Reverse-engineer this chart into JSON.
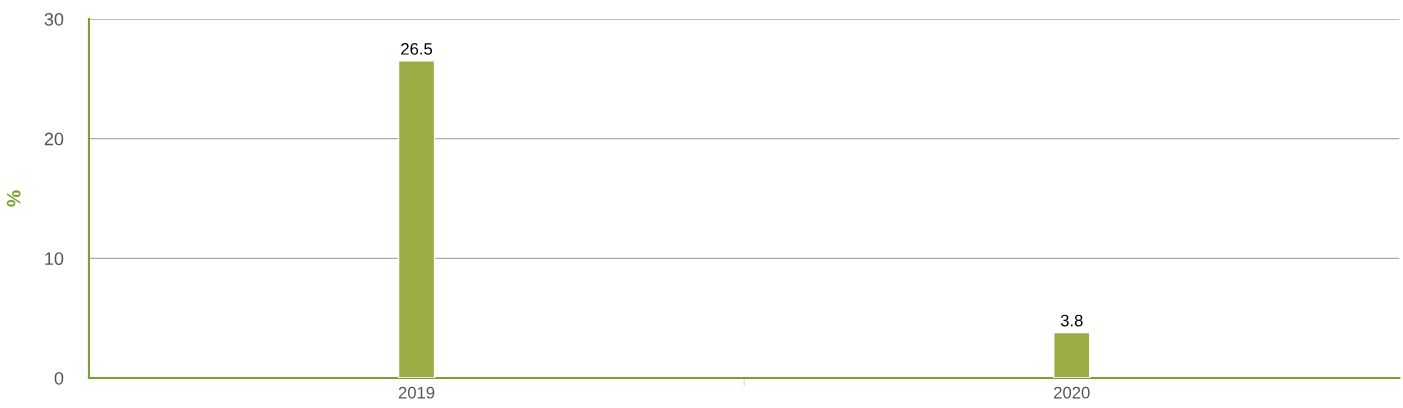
{
  "chart_data": {
    "type": "bar",
    "ylabel": "%",
    "categories": [
      "2019",
      "2020"
    ],
    "series": [
      {
        "color": "#9aae45",
        "values": [
          26.5,
          3.8
        ]
      }
    ],
    "ylim": [
      0,
      30
    ],
    "yticks": [
      0,
      10,
      20,
      30
    ],
    "grid": "y",
    "data_labels": true,
    "legend": false
  }
}
